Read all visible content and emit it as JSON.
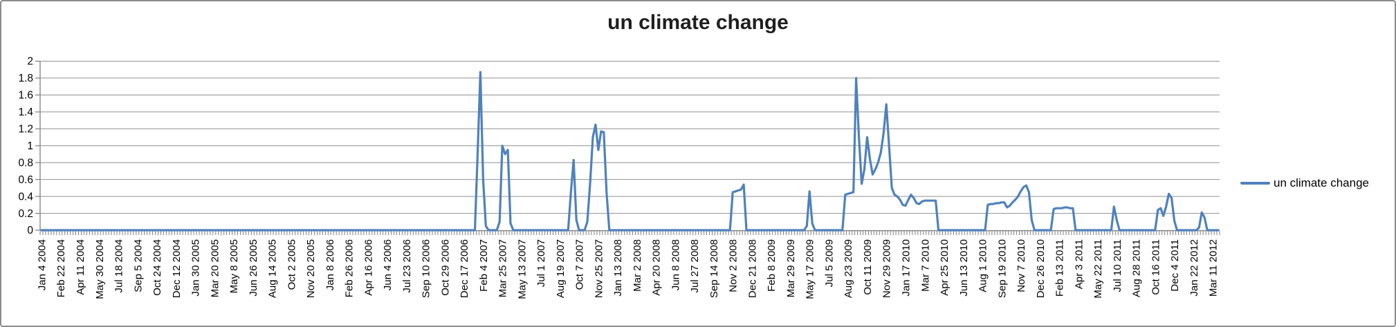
{
  "title": "un climate change",
  "legend": {
    "label": "un climate change"
  },
  "colors": {
    "line": "#4F81BD",
    "gridline": "#909090",
    "axis": "#7f7f7f",
    "tick": "#7f7f7f",
    "label_text": "#000000",
    "title_text": "#1f1f1f",
    "frame_border": "#8c8c8c",
    "background": "#ffffff"
  },
  "chart_data": {
    "type": "line",
    "title": "un climate change",
    "xlabel": "",
    "ylabel": "",
    "ylim": [
      0,
      2
    ],
    "y_step": 0.2,
    "y_tick_labels": [
      "2",
      "1.8",
      "1.6",
      "1.4",
      "1.2",
      "1",
      "0.8",
      "0.6",
      "0.4",
      "0.2",
      "0"
    ],
    "grid": "horizontal",
    "legend_position": "right",
    "x_start_label": "Jan 4 2004",
    "x_end_label": "Mar 11 2012",
    "x_point_interval_days": 7,
    "x_labels_every_n_points": 7,
    "x_tick_labels": [
      "Jan 4 2004",
      "Feb 22 2004",
      "Apr 11 2004",
      "May 30 2004",
      "Jul 18 2004",
      "Sep 5 2004",
      "Oct 24 2004",
      "Dec 12 2004",
      "Jan 30 2005",
      "Mar 20 2005",
      "May 8 2005",
      "Jun 26 2005",
      "Aug 14 2005",
      "Oct 2 2005",
      "Nov 20 2005",
      "Jan 8 2006",
      "Feb 26 2006",
      "Apr 16 2006",
      "Jun 4 2006",
      "Jul 23 2006",
      "Sep 10 2006",
      "Oct 29 2006",
      "Dec 17 2006",
      "Feb 4 2007",
      "Mar 25 2007",
      "May 13 2007",
      "Jul 1 2007",
      "Aug 19 2007",
      "Oct 7 2007",
      "Nov 25 2007",
      "Jan 13 2008",
      "Mar 2 2008",
      "Apr 20 2008",
      "Jun 8 2008",
      "Jul 27 2008",
      "Sep 14 2008",
      "Nov 2 2008",
      "Dec 21 2008",
      "Feb 8 2009",
      "Mar 29 2009",
      "May 17 2009",
      "Jul 5 2009",
      "Aug 23 2009",
      "Oct 11 2009",
      "Nov 29 2009",
      "Jan 17 2010",
      "Mar 7 2010",
      "Apr 25 2010",
      "Jun 13 2010",
      "Aug 1 2010",
      "Sep 19 2010",
      "Nov 7 2010",
      "Dec 26 2010",
      "Feb 13 2011",
      "Apr 3 2011",
      "May 22 2011",
      "Jul 10 2011",
      "Aug 28 2011",
      "Oct 16 2011",
      "Dec 4 2011",
      "Jan 22 2012",
      "Mar 11 2012"
    ],
    "series": [
      {
        "name": "un climate change",
        "color": "#4F81BD",
        "n_points": 430,
        "baseline_value": 0,
        "nonzero_points": [
          [
            159,
            0.9
          ],
          [
            160,
            1.87
          ],
          [
            161,
            0.6
          ],
          [
            162,
            0.05
          ],
          [
            167,
            0.1
          ],
          [
            168,
            1.0
          ],
          [
            169,
            0.9
          ],
          [
            170,
            0.95
          ],
          [
            171,
            0.08
          ],
          [
            193,
            0.45
          ],
          [
            194,
            0.83
          ],
          [
            195,
            0.12
          ],
          [
            199,
            0.1
          ],
          [
            200,
            0.55
          ],
          [
            201,
            1.1
          ],
          [
            202,
            1.25
          ],
          [
            203,
            0.95
          ],
          [
            204,
            1.17
          ],
          [
            205,
            1.16
          ],
          [
            206,
            0.45
          ],
          [
            252,
            0.45
          ],
          [
            253,
            0.46
          ],
          [
            254,
            0.47
          ],
          [
            255,
            0.48
          ],
          [
            256,
            0.54
          ],
          [
            279,
            0.05
          ],
          [
            280,
            0.46
          ],
          [
            281,
            0.08
          ],
          [
            293,
            0.42
          ],
          [
            294,
            0.43
          ],
          [
            295,
            0.44
          ],
          [
            296,
            0.45
          ],
          [
            297,
            1.8
          ],
          [
            298,
            1.1
          ],
          [
            299,
            0.55
          ],
          [
            300,
            0.72
          ],
          [
            301,
            1.1
          ],
          [
            302,
            0.85
          ],
          [
            303,
            0.66
          ],
          [
            304,
            0.72
          ],
          [
            305,
            0.8
          ],
          [
            306,
            0.92
          ],
          [
            307,
            1.15
          ],
          [
            308,
            1.49
          ],
          [
            309,
            1.0
          ],
          [
            310,
            0.5
          ],
          [
            311,
            0.42
          ],
          [
            312,
            0.4
          ],
          [
            313,
            0.36
          ],
          [
            314,
            0.3
          ],
          [
            315,
            0.29
          ],
          [
            316,
            0.36
          ],
          [
            317,
            0.42
          ],
          [
            318,
            0.38
          ],
          [
            319,
            0.32
          ],
          [
            320,
            0.31
          ],
          [
            321,
            0.34
          ],
          [
            322,
            0.35
          ],
          [
            323,
            0.35
          ],
          [
            324,
            0.35
          ],
          [
            325,
            0.35
          ],
          [
            326,
            0.35
          ],
          [
            345,
            0.3
          ],
          [
            346,
            0.31
          ],
          [
            347,
            0.31
          ],
          [
            348,
            0.32
          ],
          [
            349,
            0.32
          ],
          [
            350,
            0.33
          ],
          [
            351,
            0.33
          ],
          [
            352,
            0.27
          ],
          [
            353,
            0.29
          ],
          [
            354,
            0.33
          ],
          [
            355,
            0.36
          ],
          [
            356,
            0.4
          ],
          [
            357,
            0.46
          ],
          [
            358,
            0.51
          ],
          [
            359,
            0.53
          ],
          [
            360,
            0.45
          ],
          [
            361,
            0.12
          ],
          [
            369,
            0.25
          ],
          [
            370,
            0.26
          ],
          [
            371,
            0.26
          ],
          [
            372,
            0.26
          ],
          [
            373,
            0.27
          ],
          [
            374,
            0.27
          ],
          [
            375,
            0.26
          ],
          [
            376,
            0.26
          ],
          [
            391,
            0.28
          ],
          [
            392,
            0.12
          ],
          [
            407,
            0.24
          ],
          [
            408,
            0.26
          ],
          [
            409,
            0.17
          ],
          [
            410,
            0.28
          ],
          [
            411,
            0.43
          ],
          [
            412,
            0.38
          ],
          [
            413,
            0.11
          ],
          [
            422,
            0.03
          ],
          [
            423,
            0.21
          ],
          [
            424,
            0.15
          ]
        ]
      }
    ]
  }
}
